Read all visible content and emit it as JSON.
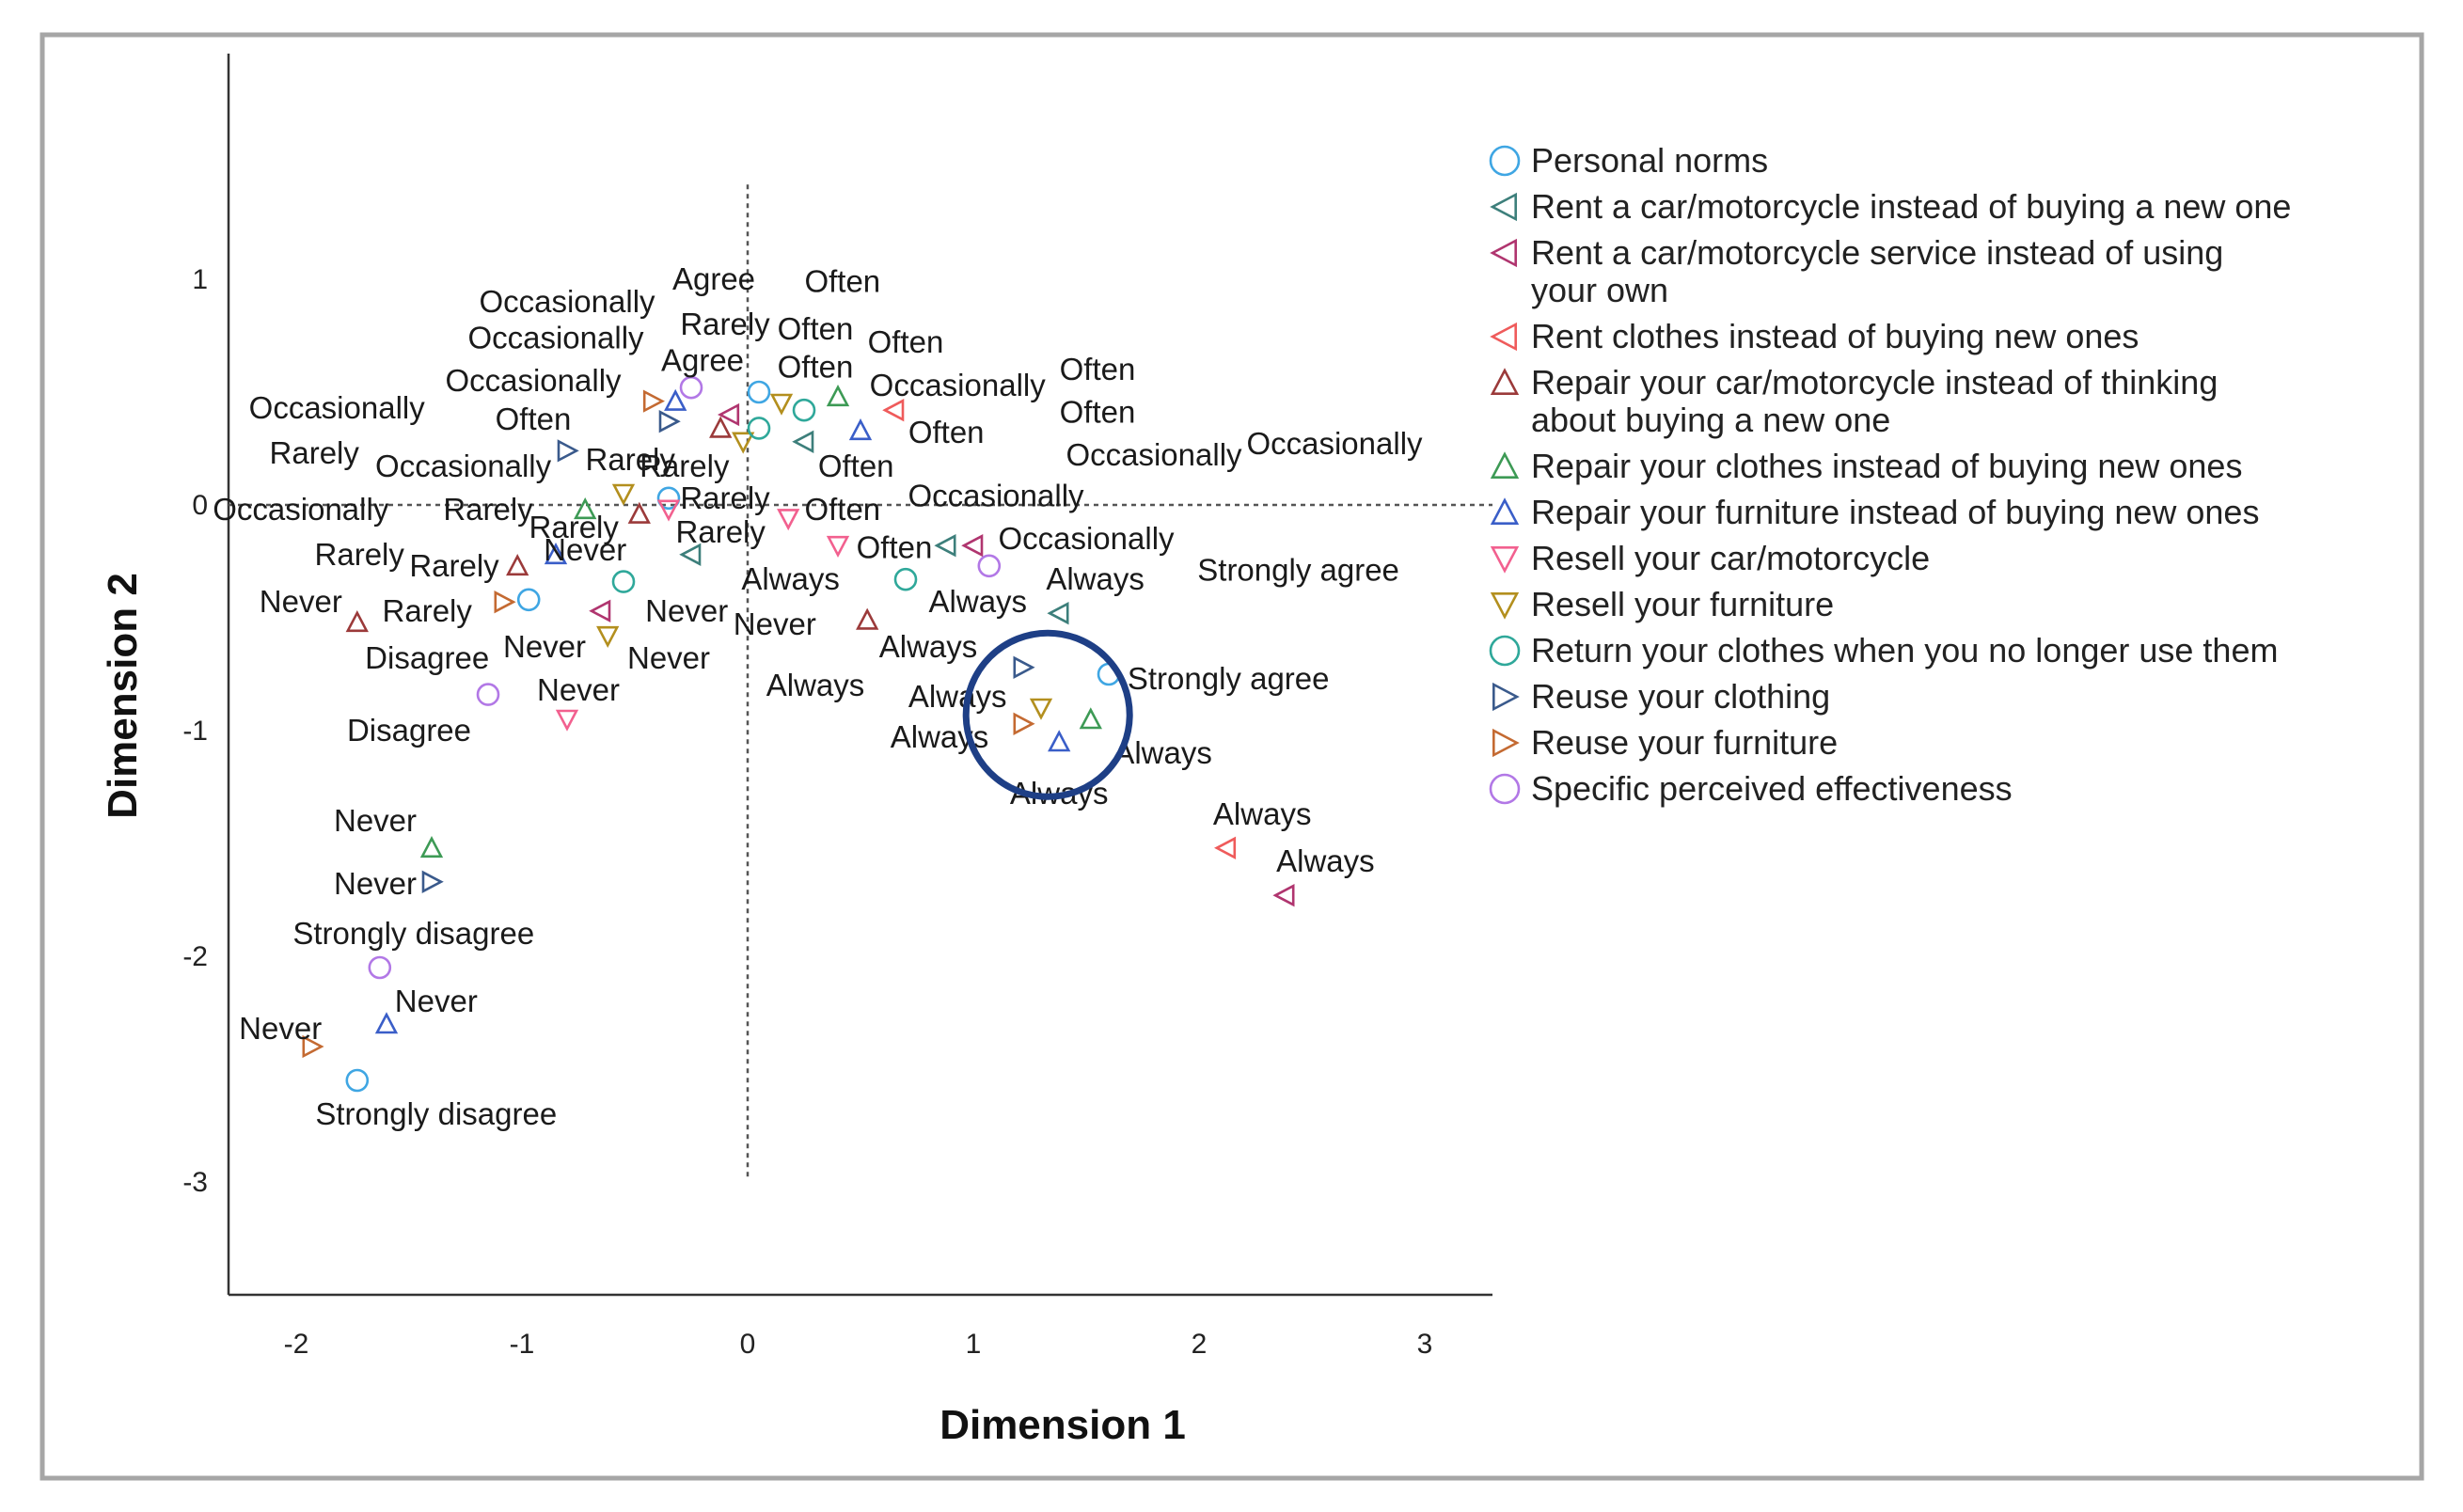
{
  "chart_data": {
    "type": "scatter",
    "xlabel": "Dimension 1",
    "ylabel": "Dimension 2",
    "xlim": [
      -2.3,
      3.3
    ],
    "ylim": [
      -3.5,
      2.0
    ],
    "x_ticks": [
      -2,
      -1,
      0,
      1,
      2,
      3
    ],
    "x_tick_labels": [
      "-2",
      "-1",
      "0",
      "1",
      "2",
      "3"
    ],
    "y_ticks": [
      1,
      0,
      -1,
      -2,
      -3
    ],
    "y_tick_labels": [
      "1",
      "0",
      "-1",
      "-2",
      "-3"
    ],
    "reference_lines": {
      "x": 0,
      "y": 0,
      "style": "dashed"
    },
    "legend_position": "right",
    "series": [
      {
        "name": "Personal norms",
        "marker": "circle",
        "color": "#3fa6e3",
        "legend_lines": [
          "Personal norms"
        ],
        "points": [
          [
            0.05,
            0.5
          ],
          [
            -0.35,
            0.03
          ],
          [
            -0.97,
            -0.42
          ],
          [
            1.6,
            -0.75
          ],
          [
            -1.73,
            -2.55
          ]
        ]
      },
      {
        "name": "Rent a car/motorcycle instead of buying a new one",
        "marker": "triangle-left",
        "color": "#3d7f7b",
        "legend_lines": [
          "Rent a car/motorcycle instead of buying a new one"
        ],
        "points": [
          [
            0.25,
            0.28
          ],
          [
            -0.25,
            -0.22
          ],
          [
            0.88,
            -0.18
          ],
          [
            1.38,
            -0.48
          ]
        ]
      },
      {
        "name": "Rent a car/motorcycle service instead of using your own",
        "marker": "triangle-left",
        "color": "#b0356f",
        "legend_lines": [
          "Rent a car/motorcycle service instead of using",
          "your own"
        ],
        "points": [
          [
            -0.08,
            0.4
          ],
          [
            -0.65,
            -0.47
          ],
          [
            1.0,
            -0.18
          ],
          [
            2.38,
            -1.73
          ]
        ]
      },
      {
        "name": "Rent clothes instead of buying new ones",
        "marker": "triangle-left",
        "color": "#ef5b5b",
        "legend_lines": [
          "Rent clothes instead of buying new ones"
        ],
        "points": [
          [
            0.65,
            0.42
          ],
          [
            2.12,
            -1.52
          ]
        ]
      },
      {
        "name": "Repair your car/motorcycle instead of thinking about buying a new one",
        "marker": "triangle-up",
        "color": "#9b3a3a",
        "legend_lines": [
          "Repair your car/motorcycle instead of thinking",
          "about buying a new one"
        ],
        "points": [
          [
            -0.12,
            0.34
          ],
          [
            -0.48,
            -0.04
          ],
          [
            -1.02,
            -0.27
          ],
          [
            -1.73,
            -0.52
          ],
          [
            0.53,
            -0.51
          ]
        ]
      },
      {
        "name": "Repair your clothes instead of buying new ones",
        "marker": "triangle-up",
        "color": "#3d9a55",
        "legend_lines": [
          "Repair your clothes instead of buying new ones"
        ],
        "points": [
          [
            0.4,
            0.48
          ],
          [
            -0.72,
            -0.02
          ],
          [
            1.52,
            -0.95
          ],
          [
            -1.4,
            -1.52
          ]
        ]
      },
      {
        "name": "Repair your furniture instead of buying new ones",
        "marker": "triangle-up",
        "color": "#3a5ec8",
        "legend_lines": [
          "Repair your furniture instead of buying new ones"
        ],
        "points": [
          [
            -0.32,
            0.46
          ],
          [
            0.5,
            0.33
          ],
          [
            -0.85,
            -0.22
          ],
          [
            1.38,
            -1.05
          ],
          [
            -1.6,
            -2.3
          ]
        ]
      },
      {
        "name": "Resell your car/motorcycle",
        "marker": "triangle-down",
        "color": "#f2608f",
        "legend_lines": [
          "Resell your car/motorcycle"
        ],
        "points": [
          [
            0.18,
            -0.06
          ],
          [
            -0.35,
            -0.02
          ],
          [
            0.4,
            -0.18
          ],
          [
            -0.8,
            -0.95
          ]
        ]
      },
      {
        "name": "Resell your furniture",
        "marker": "triangle-down",
        "color": "#b38f1e",
        "legend_lines": [
          "Resell your furniture"
        ],
        "points": [
          [
            0.15,
            0.45
          ],
          [
            -0.02,
            0.28
          ],
          [
            -0.55,
            0.05
          ],
          [
            -0.62,
            -0.58
          ],
          [
            1.3,
            -0.9
          ]
        ]
      },
      {
        "name": "Return your clothes when you no longer use them",
        "marker": "circle",
        "color": "#2fa89a",
        "legend_lines": [
          "Return your clothes when you no longer use them"
        ],
        "points": [
          [
            0.25,
            0.42
          ],
          [
            0.05,
            0.34
          ],
          [
            -0.55,
            -0.34
          ],
          [
            0.7,
            -0.33
          ]
        ]
      },
      {
        "name": "Reuse your clothing",
        "marker": "triangle-right",
        "color": "#3a5a8c",
        "legend_lines": [
          "Reuse your clothing"
        ],
        "points": [
          [
            -0.35,
            0.37
          ],
          [
            -0.8,
            0.24
          ],
          [
            1.22,
            -0.72
          ],
          [
            -1.4,
            -1.67
          ]
        ]
      },
      {
        "name": "Reuse your furniture",
        "marker": "triangle-right",
        "color": "#c46a32",
        "legend_lines": [
          "Reuse your furniture"
        ],
        "points": [
          [
            -0.42,
            0.46
          ],
          [
            -1.08,
            -0.43
          ],
          [
            1.22,
            -0.97
          ],
          [
            -1.93,
            -2.4
          ]
        ]
      },
      {
        "name": "Specific perceived effectiveness",
        "marker": "circle",
        "color": "#b278e6",
        "legend_lines": [
          "Specific perceived effectiveness"
        ],
        "points": [
          [
            -0.25,
            0.52
          ],
          [
            1.07,
            -0.27
          ],
          [
            -1.15,
            -0.84
          ],
          [
            -1.63,
            -2.05
          ]
        ]
      }
    ],
    "annotations": [
      {
        "text": "Agree",
        "x": -0.15,
        "y": 1.0
      },
      {
        "text": "Often",
        "x": 0.42,
        "y": 0.99
      },
      {
        "text": "Occasionally",
        "x": -0.8,
        "y": 0.9
      },
      {
        "text": "Rarely",
        "x": -0.1,
        "y": 0.8
      },
      {
        "text": "Often",
        "x": 0.3,
        "y": 0.78
      },
      {
        "text": "Occasionally",
        "x": -0.85,
        "y": 0.74
      },
      {
        "text": "Often",
        "x": 0.7,
        "y": 0.72
      },
      {
        "text": "Agree",
        "x": -0.2,
        "y": 0.64
      },
      {
        "text": "Often",
        "x": 0.3,
        "y": 0.61
      },
      {
        "text": "Occasionally",
        "x": -0.95,
        "y": 0.55
      },
      {
        "text": "Occasionally",
        "x": 0.93,
        "y": 0.53
      },
      {
        "text": "Often",
        "x": 1.55,
        "y": 0.6
      },
      {
        "text": "Occasionally",
        "x": -1.82,
        "y": 0.43
      },
      {
        "text": "Often",
        "x": -0.95,
        "y": 0.38
      },
      {
        "text": "Often",
        "x": 1.55,
        "y": 0.41
      },
      {
        "text": "Often",
        "x": 0.88,
        "y": 0.32
      },
      {
        "text": "Rarely",
        "x": -1.92,
        "y": 0.23
      },
      {
        "text": "Occasionally",
        "x": -1.26,
        "y": 0.17
      },
      {
        "text": "Rarely",
        "x": -0.52,
        "y": 0.2
      },
      {
        "text": "Rarely",
        "x": -0.28,
        "y": 0.17
      },
      {
        "text": "Occasionally",
        "x": 1.8,
        "y": 0.22
      },
      {
        "text": "Occasionally",
        "x": 2.6,
        "y": 0.27
      },
      {
        "text": "Often",
        "x": 0.48,
        "y": 0.17
      },
      {
        "text": "Occasionally",
        "x": 1.1,
        "y": 0.04
      },
      {
        "text": "Rarely",
        "x": -0.1,
        "y": 0.03
      },
      {
        "text": "Often",
        "x": 0.42,
        "y": -0.02
      },
      {
        "text": "Occasionally",
        "x": -1.98,
        "y": -0.02
      },
      {
        "text": "Rarely",
        "x": -1.15,
        "y": -0.02
      },
      {
        "text": "Rarely",
        "x": -0.77,
        "y": -0.1
      },
      {
        "text": "Rarely",
        "x": -0.12,
        "y": -0.12
      },
      {
        "text": "Occasionally",
        "x": 1.5,
        "y": -0.15
      },
      {
        "text": "Never",
        "x": -0.72,
        "y": -0.2
      },
      {
        "text": "Often",
        "x": 0.65,
        "y": -0.19
      },
      {
        "text": "Rarely",
        "x": -1.72,
        "y": -0.22
      },
      {
        "text": "Rarely",
        "x": -1.3,
        "y": -0.27
      },
      {
        "text": "Strongly agree",
        "x": 2.44,
        "y": -0.29
      },
      {
        "text": "Always",
        "x": 0.19,
        "y": -0.33
      },
      {
        "text": "Always",
        "x": 1.54,
        "y": -0.33
      },
      {
        "text": "Never",
        "x": -1.98,
        "y": -0.43
      },
      {
        "text": "Always",
        "x": 1.02,
        "y": -0.43
      },
      {
        "text": "Rarely",
        "x": -1.42,
        "y": -0.47
      },
      {
        "text": "Never",
        "x": -0.27,
        "y": -0.47
      },
      {
        "text": "Never",
        "x": 0.12,
        "y": -0.53
      },
      {
        "text": "Disagree",
        "x": -1.42,
        "y": -0.68
      },
      {
        "text": "Never",
        "x": -0.9,
        "y": -0.63
      },
      {
        "text": "Never",
        "x": -0.35,
        "y": -0.68
      },
      {
        "text": "Always",
        "x": 0.8,
        "y": -0.63
      },
      {
        "text": "Strongly agree",
        "x": 2.13,
        "y": -0.77
      },
      {
        "text": "Never",
        "x": -0.75,
        "y": -0.82
      },
      {
        "text": "Always",
        "x": 0.3,
        "y": -0.8
      },
      {
        "text": "Always",
        "x": 0.93,
        "y": -0.85
      },
      {
        "text": "Disagree",
        "x": -1.5,
        "y": -1.0
      },
      {
        "text": "Always",
        "x": 0.85,
        "y": -1.03
      },
      {
        "text": "Always",
        "x": 1.84,
        "y": -1.1
      },
      {
        "text": "Always",
        "x": 1.38,
        "y": -1.28
      },
      {
        "text": "Always",
        "x": 2.28,
        "y": -1.37
      },
      {
        "text": "Always",
        "x": 2.56,
        "y": -1.58
      },
      {
        "text": "Never",
        "x": -1.65,
        "y": -1.4
      },
      {
        "text": "Never",
        "x": -1.65,
        "y": -1.68
      },
      {
        "text": "Strongly disagree",
        "x": -1.48,
        "y": -1.9
      },
      {
        "text": "Never",
        "x": -1.38,
        "y": -2.2
      },
      {
        "text": "Never",
        "x": -2.07,
        "y": -2.32
      },
      {
        "text": "Strongly disagree",
        "x": -1.38,
        "y": -2.7
      }
    ],
    "highlight_circle": {
      "cx": 1.33,
      "cy": -0.93,
      "color": "#1e3f86"
    }
  }
}
